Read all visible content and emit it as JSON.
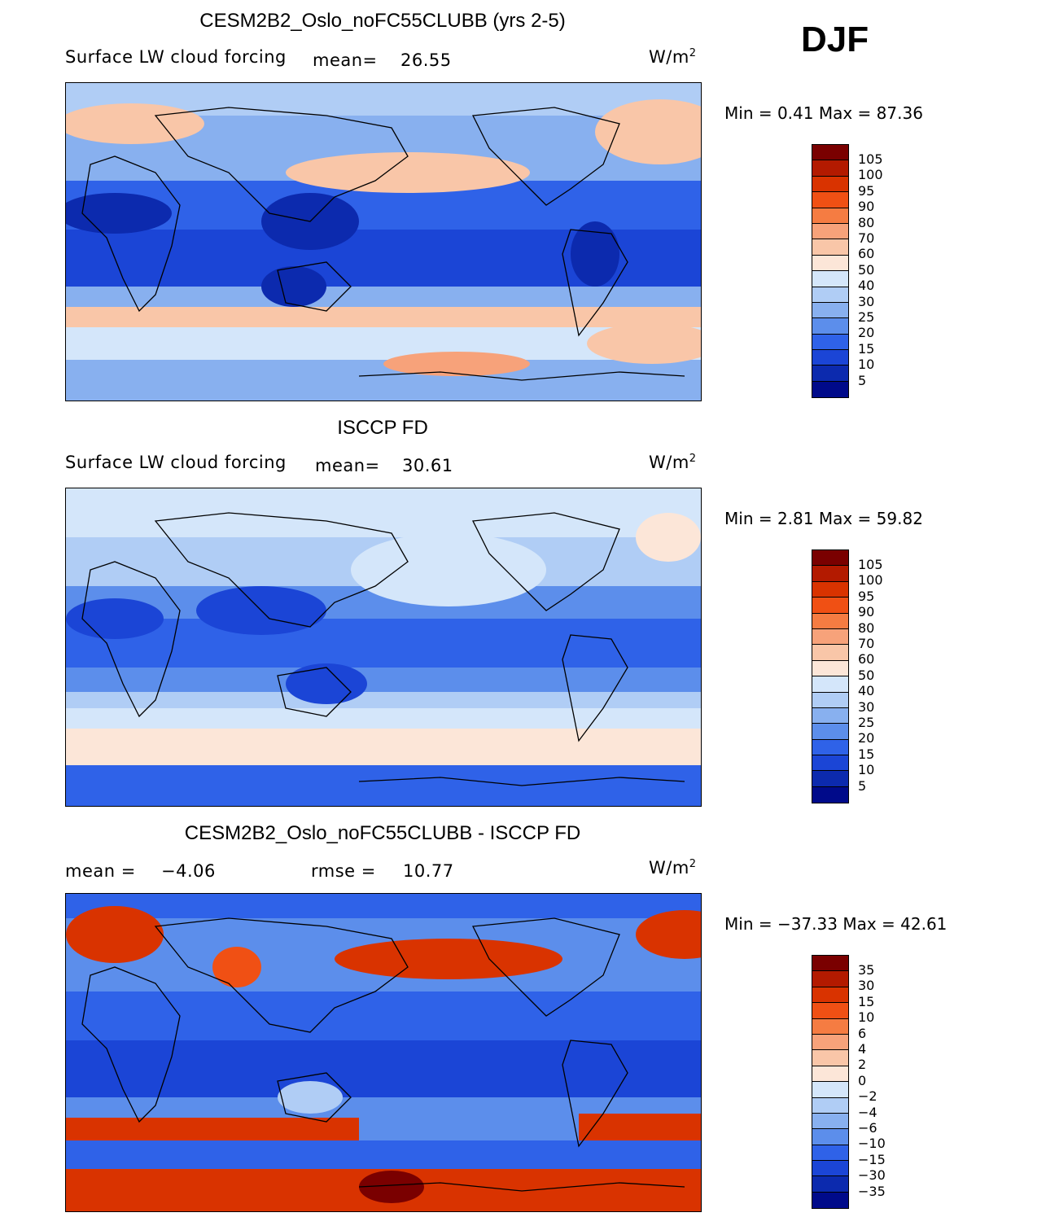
{
  "season": "DJF",
  "units_w": "W/m",
  "units_exp": "2",
  "panels": [
    {
      "title": "CESM2B2_Oslo_noFC55CLUBB (yrs 2-5)",
      "left_label": "Surface LW cloud forcing",
      "mean_label": "mean=",
      "mean_value": "26.55",
      "minmax": "Min =    0.41  Max =   87.36",
      "colorbar_labels": [
        "105",
        "100",
        "95",
        "90",
        "80",
        "70",
        "60",
        "50",
        "40",
        "30",
        "25",
        "20",
        "15",
        "10",
        "5"
      ]
    },
    {
      "title": "ISCCP FD",
      "left_label": "Surface LW cloud forcing",
      "mean_label": "mean=",
      "mean_value": "30.61",
      "minmax": "Min =    2.81  Max =   59.82",
      "colorbar_labels": [
        "105",
        "100",
        "95",
        "90",
        "80",
        "70",
        "60",
        "50",
        "40",
        "30",
        "25",
        "20",
        "15",
        "10",
        "5"
      ]
    },
    {
      "title": "CESM2B2_Oslo_noFC55CLUBB - ISCCP FD",
      "mean_label": "mean =",
      "mean_value": "−4.06",
      "rmse_label": "rmse =",
      "rmse_value": "10.77",
      "minmax": "Min = −37.33  Max =   42.61",
      "colorbar_labels": [
        "35",
        "30",
        "15",
        "10",
        "6",
        "4",
        "2",
        "0",
        "−2",
        "−4",
        "−6",
        "−10",
        "−15",
        "−30",
        "−35"
      ]
    }
  ],
  "colors": {
    "scale": [
      "#7a0000",
      "#b31a00",
      "#d93300",
      "#f05014",
      "#f57c42",
      "#f7a27a",
      "#f9c6a8",
      "#fce6d8",
      "#d4e6fa",
      "#b0cdf5",
      "#88b0ef",
      "#5c8eeb",
      "#2f62e8",
      "#1b45d6",
      "#0c2aae",
      "#000a8a"
    ]
  },
  "chart_data": [
    {
      "type": "heatmap",
      "title": "CESM2B2_Oslo_noFC55CLUBB (yrs 2-5)",
      "variable": "Surface LW cloud forcing",
      "units": "W/m^2",
      "mean": 26.55,
      "min": 0.41,
      "max": 87.36,
      "levels": [
        5,
        10,
        15,
        20,
        25,
        30,
        40,
        50,
        60,
        70,
        80,
        90,
        95,
        100,
        105
      ]
    },
    {
      "type": "heatmap",
      "title": "ISCCP FD",
      "variable": "Surface LW cloud forcing",
      "units": "W/m^2",
      "mean": 30.61,
      "min": 2.81,
      "max": 59.82,
      "levels": [
        5,
        10,
        15,
        20,
        25,
        30,
        40,
        50,
        60,
        70,
        80,
        90,
        95,
        100,
        105
      ]
    },
    {
      "type": "heatmap",
      "title": "CESM2B2_Oslo_noFC55CLUBB - ISCCP FD",
      "units": "W/m^2",
      "mean": -4.06,
      "rmse": 10.77,
      "min": -37.33,
      "max": 42.61,
      "levels": [
        -35,
        -30,
        -15,
        -10,
        -6,
        -4,
        -2,
        0,
        2,
        4,
        6,
        10,
        15,
        30,
        35
      ]
    }
  ]
}
